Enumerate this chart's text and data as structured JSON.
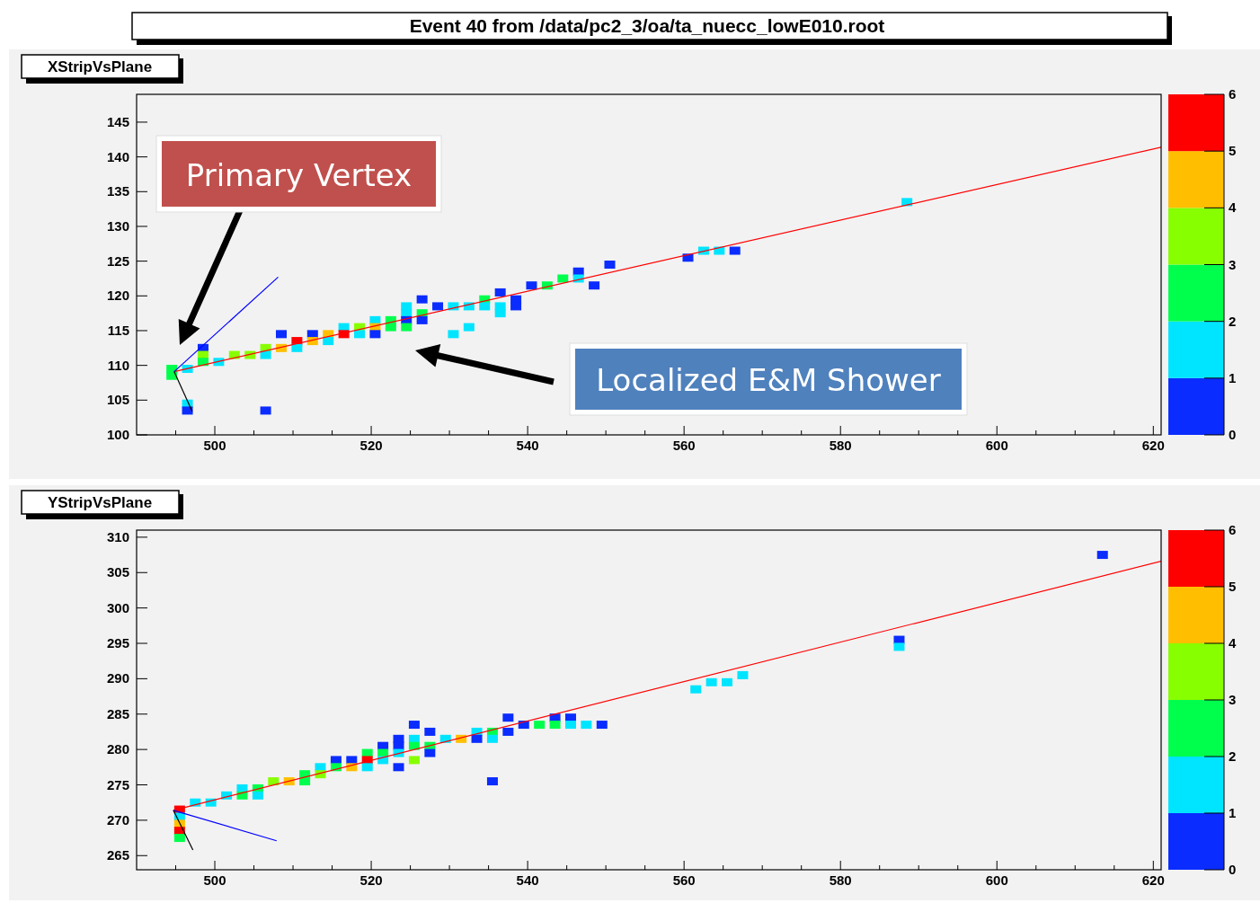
{
  "chart_data": [
    {
      "type": "scatter",
      "title": "XStripVsPlane",
      "subtitle": "Event 40 from /data/pc2_3/oa/ta_nuecc_lowE010.root",
      "xlim": [
        490,
        621
      ],
      "xticks": [
        {
          "value": 495,
          "label": null
        },
        500,
        {
          "value": 505,
          "label": null
        },
        {
          "value": 510,
          "label": null
        },
        {
          "value": 515,
          "label": null
        },
        520,
        {
          "value": 525,
          "label": null
        },
        {
          "value": 530,
          "label": null
        },
        {
          "value": 535,
          "label": null
        },
        540,
        {
          "value": 545,
          "label": null
        },
        {
          "value": 550,
          "label": null
        },
        {
          "value": 555,
          "label": null
        },
        560,
        {
          "value": 565,
          "label": null
        },
        {
          "value": 570,
          "label": null
        },
        {
          "value": 575,
          "label": null
        },
        580,
        {
          "value": 585,
          "label": null
        },
        {
          "value": 590,
          "label": null
        },
        {
          "value": 595,
          "label": null
        },
        600,
        {
          "value": 605,
          "label": null
        },
        {
          "value": 610,
          "label": null
        },
        {
          "value": 615,
          "label": null
        },
        620
      ],
      "ylim": [
        100,
        149
      ],
      "yticks": [
        100,
        105,
        110,
        115,
        120,
        125,
        130,
        135,
        140,
        145
      ],
      "clim": [
        0,
        6
      ],
      "cticks": [
        0,
        1,
        2,
        3,
        4,
        5,
        6
      ],
      "grid": false,
      "series": [
        {
          "type": "scatter",
          "x": [
            494.5,
            494.5,
            496.5,
            496.5,
            496.5,
            498.5,
            498.5,
            498.5,
            500.5,
            502.5,
            504.5,
            506.5,
            506.5,
            506.5,
            508.5,
            508.5,
            510.5,
            510.5,
            512.5,
            512.5,
            514.5,
            514.5,
            516.5,
            516.5,
            518.5,
            518.5,
            520.5,
            520.5,
            520.5,
            522.5,
            522.5,
            524.5,
            524.5,
            524.5,
            524.5,
            526.5,
            526.5,
            526.5,
            528.5,
            530.5,
            530.5,
            532.5,
            532.5,
            534.5,
            534.5,
            536.5,
            536.5,
            536.5,
            538.5,
            538.5,
            540.5,
            542.5,
            544.5,
            546.5,
            546.5,
            548.5,
            550.5,
            560.5,
            562.5,
            564.5,
            566.5,
            588.5
          ],
          "values": [
            109.5,
            108.5,
            109.5,
            104.5,
            103.5,
            112.5,
            111.5,
            110.5,
            110.5,
            111.5,
            111.5,
            112.5,
            111.5,
            103.5,
            112.5,
            114.5,
            113.5,
            112.5,
            114.5,
            113.5,
            114.5,
            113.5,
            115.5,
            114.5,
            115.5,
            114.5,
            116.5,
            115.5,
            114.5,
            116.5,
            115.5,
            118.5,
            117.5,
            116.5,
            115.5,
            119.5,
            117.5,
            116.5,
            118.5,
            118.5,
            114.5,
            118.5,
            115.5,
            119.5,
            118.5,
            120.5,
            118.5,
            117.5,
            119.5,
            118.5,
            121.5,
            121.5,
            122.5,
            123.5,
            122.5,
            121.5,
            124.5,
            125.5,
            126.5,
            126.5,
            126.5,
            133.5
          ],
          "marker": "square",
          "colors": [
            "#00ff4d",
            "#00ff4d",
            "#00e5ff",
            "#00e5ff",
            "#0a2cff",
            "#0a2cff",
            "#88ff00",
            "#00ff4d",
            "#00e5ff",
            "#88ff00",
            "#88ff00",
            "#88ff00",
            "#00e5ff",
            "#0a2cff",
            "#ffbf00",
            "#0a2cff",
            "#ff0000",
            "#00e5ff",
            "#0a2cff",
            "#ffbf00",
            "#ffbf00",
            "#00e5ff",
            "#00e5ff",
            "#ff0000",
            "#88ff00",
            "#00e5ff",
            "#00e5ff",
            "#ffbf00",
            "#0a2cff",
            "#00ff4d",
            "#00ff4d",
            "#00e5ff",
            "#00e5ff",
            "#0a2cff",
            "#00ff4d",
            "#0a2cff",
            "#00ff4d",
            "#0a2cff",
            "#0a2cff",
            "#00e5ff",
            "#00e5ff",
            "#00e5ff",
            "#00e5ff",
            "#00ff4d",
            "#00e5ff",
            "#0a2cff",
            "#00e5ff",
            "#00e5ff",
            "#0a2cff",
            "#0a2cff",
            "#0a2cff",
            "#00ff4d",
            "#00ff4d",
            "#0a2cff",
            "#00e5ff",
            "#0a2cff",
            "#0a2cff",
            "#0a2cff",
            "#00e5ff",
            "#00e5ff",
            "#0a2cff",
            "#00e5ff"
          ]
        },
        {
          "type": "line",
          "color": "#ff0000",
          "x": [
            494.8,
            621
          ],
          "values": [
            109.1,
            141.4
          ]
        },
        {
          "type": "line",
          "color": "#0000ff",
          "x": [
            494.8,
            508.1
          ],
          "values": [
            109.1,
            122.7
          ]
        },
        {
          "type": "line",
          "color": "#000000",
          "x": [
            494.8,
            497.1
          ],
          "values": [
            109.1,
            103.4
          ]
        }
      ],
      "annotations": [
        "Primary Vertex",
        "Localized E&M Shower"
      ]
    },
    {
      "type": "scatter",
      "title": "YStripVsPlane",
      "xlim": [
        490,
        621
      ],
      "xticks": [
        {
          "value": 495,
          "label": null
        },
        500,
        {
          "value": 505,
          "label": null
        },
        {
          "value": 510,
          "label": null
        },
        {
          "value": 515,
          "label": null
        },
        520,
        {
          "value": 525,
          "label": null
        },
        {
          "value": 530,
          "label": null
        },
        {
          "value": 535,
          "label": null
        },
        540,
        {
          "value": 545,
          "label": null
        },
        {
          "value": 550,
          "label": null
        },
        {
          "value": 555,
          "label": null
        },
        560,
        {
          "value": 565,
          "label": null
        },
        {
          "value": 570,
          "label": null
        },
        {
          "value": 575,
          "label": null
        },
        580,
        {
          "value": 585,
          "label": null
        },
        {
          "value": 590,
          "label": null
        },
        {
          "value": 595,
          "label": null
        },
        600,
        {
          "value": 605,
          "label": null
        },
        {
          "value": 610,
          "label": null
        },
        {
          "value": 615,
          "label": null
        },
        620
      ],
      "ylim": [
        263,
        311
      ],
      "yticks": [
        265,
        270,
        275,
        280,
        285,
        290,
        295,
        300,
        305,
        310
      ],
      "clim": [
        0,
        6
      ],
      "cticks": [
        0,
        1,
        2,
        3,
        4,
        5,
        6
      ],
      "grid": false,
      "series": [
        {
          "type": "scatter",
          "x": [
            495.5,
            495.5,
            495.5,
            495.5,
            495.5,
            497.5,
            499.5,
            501.5,
            503.5,
            503.5,
            505.5,
            505.5,
            507.5,
            509.5,
            511.5,
            511.5,
            513.5,
            513.5,
            515.5,
            515.5,
            517.5,
            517.5,
            519.5,
            519.5,
            519.5,
            521.5,
            521.5,
            521.5,
            523.5,
            523.5,
            523.5,
            523.5,
            525.5,
            525.5,
            525.5,
            525.5,
            527.5,
            527.5,
            527.5,
            529.5,
            531.5,
            533.5,
            533.5,
            535.5,
            535.5,
            535.5,
            537.5,
            537.5,
            539.5,
            541.5,
            543.5,
            543.5,
            545.5,
            545.5,
            547.5,
            549.5,
            561.5,
            563.5,
            565.5,
            567.5,
            587.5,
            587.5,
            613.5
          ],
          "values": [
            271.5,
            270.5,
            269.5,
            268.5,
            267.5,
            272.5,
            272.5,
            273.5,
            274.5,
            273.5,
            274.5,
            273.5,
            275.5,
            275.5,
            276.5,
            275.5,
            277.5,
            276.5,
            278.5,
            277.5,
            278.5,
            277.5,
            279.5,
            278.5,
            277.5,
            280.5,
            279.5,
            278.5,
            281.5,
            280.5,
            279.5,
            277.5,
            283.5,
            281.5,
            280.5,
            278.5,
            282.5,
            280.5,
            279.5,
            281.5,
            281.5,
            282.5,
            281.5,
            282.5,
            281.5,
            275.5,
            284.5,
            282.5,
            283.5,
            283.5,
            284.5,
            283.5,
            284.5,
            283.5,
            283.5,
            283.5,
            288.5,
            289.5,
            289.5,
            290.5,
            295.5,
            294.5,
            307.5
          ],
          "marker": "square",
          "colors": [
            "#ff0000",
            "#00e5ff",
            "#ffbf00",
            "#ff0000",
            "#00ff4d",
            "#00e5ff",
            "#00e5ff",
            "#00e5ff",
            "#00e5ff",
            "#00ff4d",
            "#00ff4d",
            "#00e5ff",
            "#88ff00",
            "#ffbf00",
            "#00ff4d",
            "#00ff4d",
            "#00e5ff",
            "#88ff00",
            "#0a2cff",
            "#00ff4d",
            "#0a2cff",
            "#ffbf00",
            "#00ff4d",
            "#ff0000",
            "#00e5ff",
            "#0a2cff",
            "#00ff4d",
            "#00e5ff",
            "#0a2cff",
            "#0a2cff",
            "#00e5ff",
            "#0a2cff",
            "#0a2cff",
            "#00e5ff",
            "#00ff4d",
            "#88ff00",
            "#0a2cff",
            "#00ff4d",
            "#0a2cff",
            "#00e5ff",
            "#ffbf00",
            "#00e5ff",
            "#0a2cff",
            "#00ff4d",
            "#00e5ff",
            "#0a2cff",
            "#0a2cff",
            "#0a2cff",
            "#0a2cff",
            "#00ff4d",
            "#0a2cff",
            "#00ff4d",
            "#0a2cff",
            "#00e5ff",
            "#00e5ff",
            "#0a2cff",
            "#00e5ff",
            "#00e5ff",
            "#00e5ff",
            "#00e5ff",
            "#0a2cff",
            "#00e5ff",
            "#0a2cff"
          ]
        },
        {
          "type": "line",
          "color": "#ff0000",
          "x": [
            494.7,
            621
          ],
          "values": [
            271.4,
            306.6
          ]
        },
        {
          "type": "line",
          "color": "#0000ff",
          "x": [
            494.7,
            507.9
          ],
          "values": [
            271.4,
            267.1
          ]
        },
        {
          "type": "line",
          "color": "#000000",
          "x": [
            494.7,
            497.2
          ],
          "values": [
            271.4,
            265.8
          ]
        }
      ]
    }
  ]
}
